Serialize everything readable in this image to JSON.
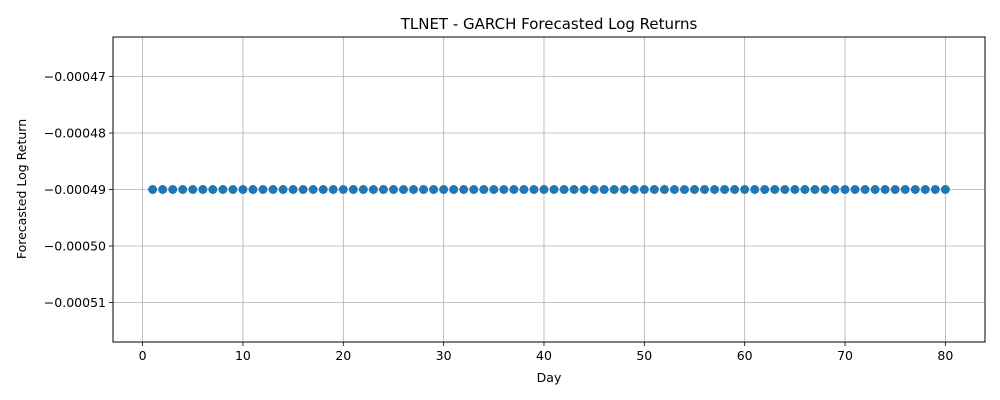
{
  "chart_data": {
    "type": "scatter",
    "title": "TLNET - GARCH Forecasted Log Returns",
    "xlabel": "Day",
    "ylabel": "Forecasted Log Return",
    "xlim": [
      -2.95,
      83.95
    ],
    "ylim": [
      -0.000517,
      -0.000463
    ],
    "xticks": [
      0,
      10,
      20,
      30,
      40,
      50,
      60,
      70,
      80
    ],
    "yticks": [
      -0.00047,
      -0.00048,
      -0.00049,
      -0.0005,
      -0.00051
    ],
    "ytick_labels": [
      "−0.00047",
      "−0.00048",
      "−0.00049",
      "−0.00050",
      "−0.00051"
    ],
    "grid": true,
    "marker": "circle",
    "color": "#1f77b4",
    "series": [
      {
        "x": [
          1,
          2,
          3,
          4,
          5,
          6,
          7,
          8,
          9,
          10,
          11,
          12,
          13,
          14,
          15,
          16,
          17,
          18,
          19,
          20,
          21,
          22,
          23,
          24,
          25,
          26,
          27,
          28,
          29,
          30,
          31,
          32,
          33,
          34,
          35,
          36,
          37,
          38,
          39,
          40,
          41,
          42,
          43,
          44,
          45,
          46,
          47,
          48,
          49,
          50,
          51,
          52,
          53,
          54,
          55,
          56,
          57,
          58,
          59,
          60,
          61,
          62,
          63,
          64,
          65,
          66,
          67,
          68,
          69,
          70,
          71,
          72,
          73,
          74,
          75,
          76,
          77,
          78,
          79,
          80
        ],
        "y": [
          -0.00049,
          -0.00049,
          -0.00049,
          -0.00049,
          -0.00049,
          -0.00049,
          -0.00049,
          -0.00049,
          -0.00049,
          -0.00049,
          -0.00049,
          -0.00049,
          -0.00049,
          -0.00049,
          -0.00049,
          -0.00049,
          -0.00049,
          -0.00049,
          -0.00049,
          -0.00049,
          -0.00049,
          -0.00049,
          -0.00049,
          -0.00049,
          -0.00049,
          -0.00049,
          -0.00049,
          -0.00049,
          -0.00049,
          -0.00049,
          -0.00049,
          -0.00049,
          -0.00049,
          -0.00049,
          -0.00049,
          -0.00049,
          -0.00049,
          -0.00049,
          -0.00049,
          -0.00049,
          -0.00049,
          -0.00049,
          -0.00049,
          -0.00049,
          -0.00049,
          -0.00049,
          -0.00049,
          -0.00049,
          -0.00049,
          -0.00049,
          -0.00049,
          -0.00049,
          -0.00049,
          -0.00049,
          -0.00049,
          -0.00049,
          -0.00049,
          -0.00049,
          -0.00049,
          -0.00049,
          -0.00049,
          -0.00049,
          -0.00049,
          -0.00049,
          -0.00049,
          -0.00049,
          -0.00049,
          -0.00049,
          -0.00049,
          -0.00049,
          -0.00049,
          -0.00049,
          -0.00049,
          -0.00049,
          -0.00049,
          -0.00049,
          -0.00049,
          -0.00049,
          -0.00049,
          -0.00049
        ]
      }
    ]
  }
}
